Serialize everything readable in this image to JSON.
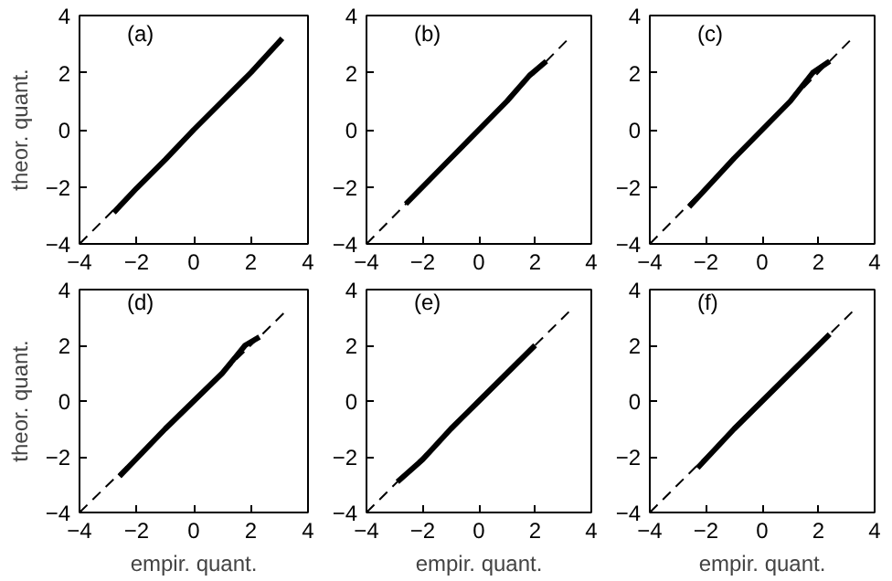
{
  "chart_data": [
    {
      "type": "line",
      "ylabel": "theor. quant.",
      "annotations": [
        "(a)"
      ],
      "xlim": [
        -4,
        4
      ],
      "ylim": [
        -4,
        4
      ],
      "xticks": [
        -4,
        -2,
        0,
        2,
        4
      ],
      "yticks": [
        -4,
        -2,
        0,
        2,
        4
      ],
      "grid": false,
      "series": [
        {
          "color": "#000000",
          "line_style": "solid",
          "x": [
            -2.8,
            -2,
            -1,
            0,
            1,
            2,
            3.1
          ],
          "values": [
            -2.9,
            -2.05,
            -1.05,
            0,
            1,
            2,
            3.2
          ]
        },
        {
          "color": "#000000",
          "line_style": "dashed",
          "x": [
            -4,
            3.2
          ],
          "values": [
            -4,
            3.2
          ]
        }
      ]
    },
    {
      "type": "line",
      "annotations": [
        "(b)"
      ],
      "xlim": [
        -4,
        4
      ],
      "ylim": [
        -4,
        4
      ],
      "xticks": [
        -4,
        -2,
        0,
        2,
        4
      ],
      "yticks": [
        -4,
        -2,
        0,
        2,
        4
      ],
      "grid": false,
      "series": [
        {
          "color": "#000000",
          "line_style": "solid",
          "x": [
            -2.6,
            -1,
            0,
            1,
            1.8,
            2.4
          ],
          "values": [
            -2.6,
            -1,
            0,
            1,
            1.9,
            2.4
          ]
        },
        {
          "color": "#000000",
          "line_style": "dashed",
          "x": [
            -4,
            3.2
          ],
          "values": [
            -4,
            3.2
          ]
        }
      ]
    },
    {
      "type": "line",
      "annotations": [
        "(c)"
      ],
      "xlim": [
        -4,
        4
      ],
      "ylim": [
        -4,
        4
      ],
      "xticks": [
        -4,
        -2,
        0,
        2,
        4
      ],
      "yticks": [
        -4,
        -2,
        0,
        2,
        4
      ],
      "grid": false,
      "series": [
        {
          "color": "#000000",
          "line_style": "solid",
          "x": [
            -2.6,
            -1,
            0,
            1,
            1.8,
            2.4
          ],
          "values": [
            -2.7,
            -1,
            0,
            1,
            2,
            2.4
          ]
        },
        {
          "color": "#000000",
          "line_style": "dashed",
          "x": [
            -4,
            3.2
          ],
          "values": [
            -4,
            3.2
          ]
        }
      ]
    },
    {
      "type": "line",
      "xlabel": "empir. quant.",
      "ylabel": "theor. quant.",
      "annotations": [
        "(d)"
      ],
      "xlim": [
        -4,
        4
      ],
      "ylim": [
        -4,
        4
      ],
      "xticks": [
        -4,
        -2,
        0,
        2,
        4
      ],
      "yticks": [
        -4,
        -2,
        0,
        2,
        4
      ],
      "grid": false,
      "series": [
        {
          "color": "#000000",
          "line_style": "solid",
          "x": [
            -2.6,
            -1,
            0,
            1,
            1.8,
            2.3
          ],
          "values": [
            -2.7,
            -1,
            0,
            1,
            2,
            2.3
          ]
        },
        {
          "color": "#000000",
          "line_style": "dashed",
          "x": [
            -4,
            3.2
          ],
          "values": [
            -4,
            3.2
          ]
        }
      ]
    },
    {
      "type": "line",
      "xlabel": "empir. quant.",
      "annotations": [
        "(e)"
      ],
      "xlim": [
        -4,
        4
      ],
      "ylim": [
        -4,
        4
      ],
      "xticks": [
        -4,
        -2,
        0,
        2,
        4
      ],
      "yticks": [
        -4,
        -2,
        0,
        2,
        4
      ],
      "grid": false,
      "series": [
        {
          "color": "#000000",
          "line_style": "solid",
          "x": [
            -2.9,
            -2,
            -1,
            0,
            1,
            2
          ],
          "values": [
            -2.9,
            -2.1,
            -1,
            0,
            1,
            2
          ]
        },
        {
          "color": "#000000",
          "line_style": "dashed",
          "x": [
            -4,
            3.2
          ],
          "values": [
            -4,
            3.2
          ]
        }
      ]
    },
    {
      "type": "line",
      "xlabel": "empir. quant.",
      "annotations": [
        "(f)"
      ],
      "xlim": [
        -4,
        4
      ],
      "ylim": [
        -4,
        4
      ],
      "xticks": [
        -4,
        -2,
        0,
        2,
        4
      ],
      "yticks": [
        -4,
        -2,
        0,
        2,
        4
      ],
      "grid": false,
      "series": [
        {
          "color": "#000000",
          "line_style": "solid",
          "x": [
            -2.3,
            -1,
            0,
            1,
            2.4
          ],
          "values": [
            -2.4,
            -1,
            0,
            1,
            2.4
          ]
        },
        {
          "color": "#000000",
          "line_style": "dashed",
          "x": [
            -4,
            3.2
          ],
          "values": [
            -4,
            3.2
          ]
        }
      ]
    }
  ]
}
